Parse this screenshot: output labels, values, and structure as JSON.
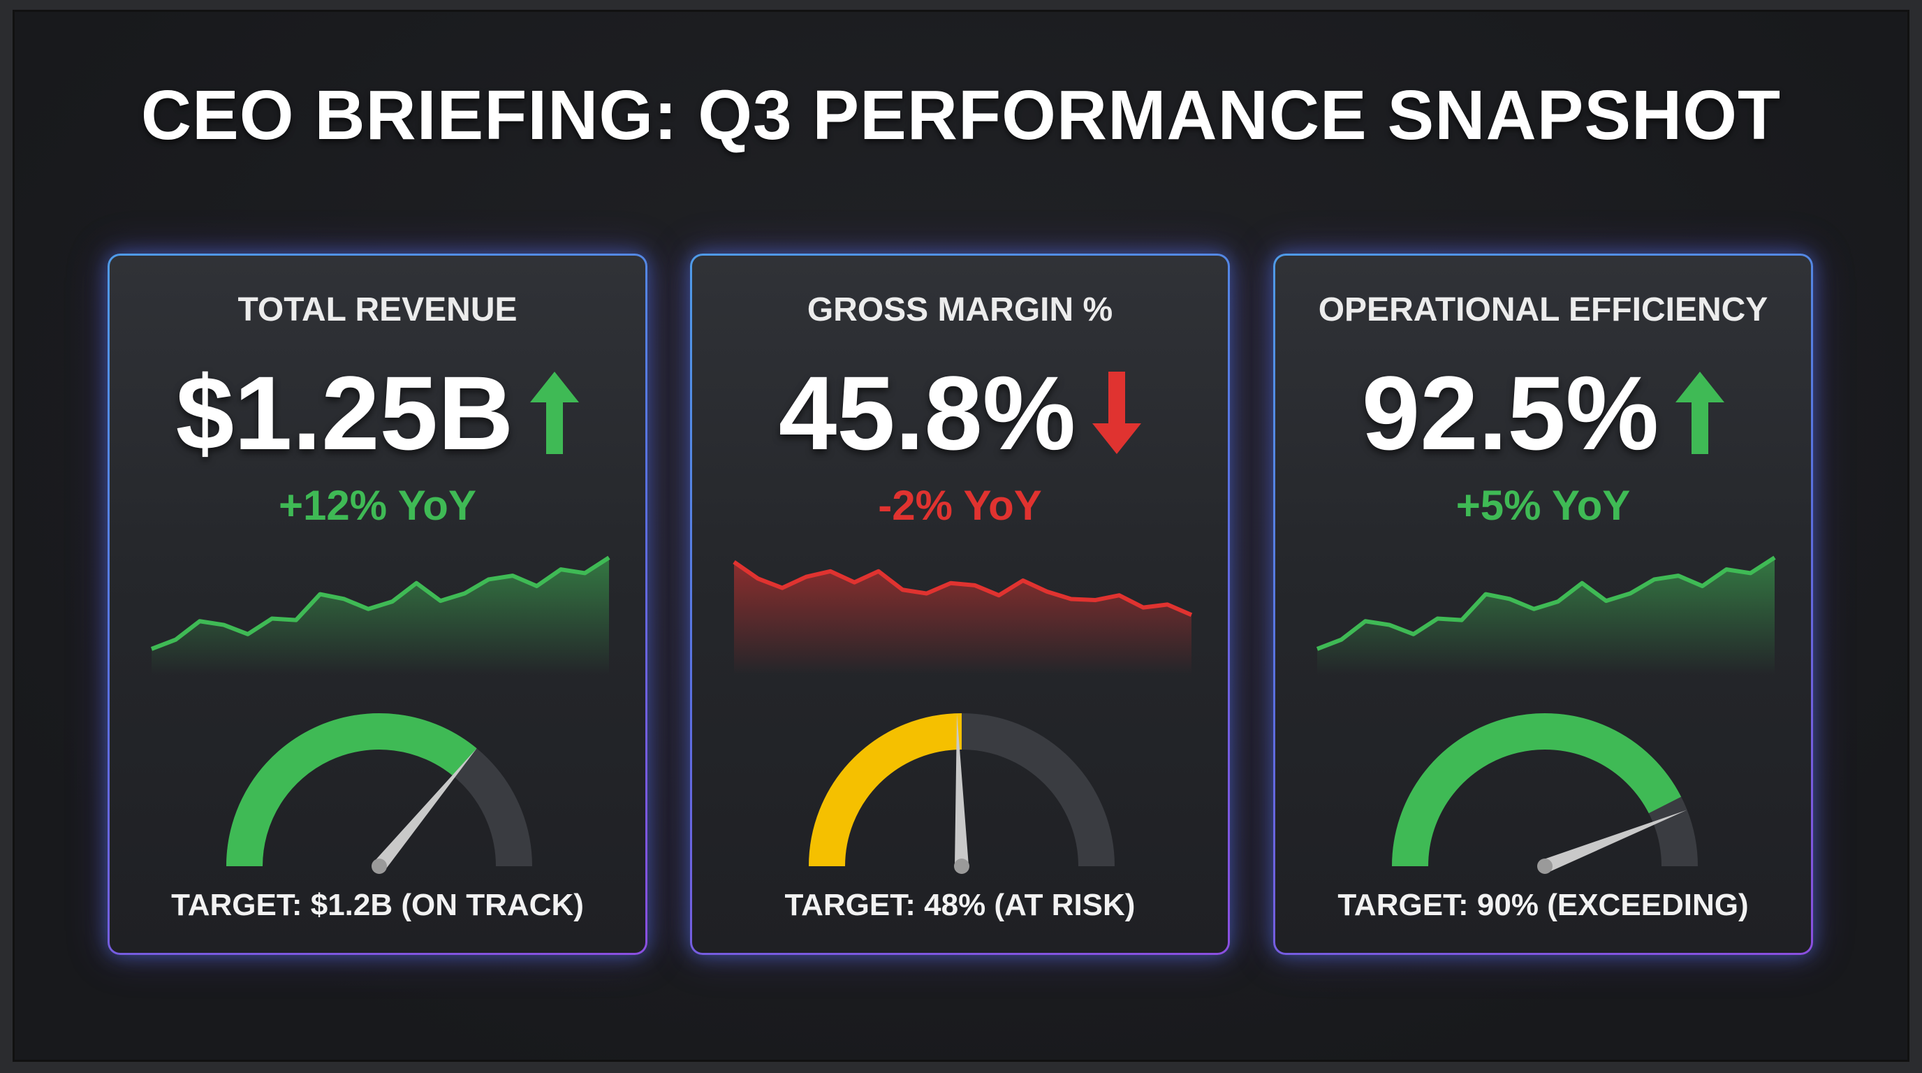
{
  "header": {
    "title": "CEO BRIEFING: Q3 PERFORMANCE SNAPSHOT"
  },
  "colors": {
    "positive": "#3fba55",
    "negative": "#e03330",
    "warning": "#f5c000",
    "track": "#3a3c41",
    "border_start": "#4f9be8",
    "border_end": "#8b4fe0"
  },
  "cards": [
    {
      "title": "TOTAL REVENUE",
      "value": "$1.25B",
      "trend": "up",
      "trend_icon": "arrow-up-icon",
      "yoy": "+12% YoY",
      "target": "TARGET: $1.2B (ON TRACK)",
      "status": "positive",
      "gauge_fill": 0.72,
      "needle": 0.72,
      "gauge_color": "#3fba55",
      "sparkline": [
        7,
        9.5,
        14.5,
        13.5,
        11,
        15.2,
        14.8,
        21.8,
        20.5,
        17.8,
        19.8,
        24.8,
        20,
        22,
        25.8,
        26.8,
        24,
        28.5,
        27.5,
        31.7
      ]
    },
    {
      "title": "GROSS MARGIN %",
      "value": "45.8%",
      "trend": "down",
      "trend_icon": "arrow-down-icon",
      "yoy": "-2% YoY",
      "target": "TARGET: 48% (AT RISK)",
      "status": "negative",
      "gauge_fill": 0.5,
      "needle": 0.49,
      "gauge_color": "#f5c000",
      "sparkline": [
        30.5,
        26,
        23.5,
        26.5,
        28,
        25,
        28,
        23,
        22,
        24.8,
        24.2,
        21.5,
        25.5,
        22.5,
        20.5,
        20.2,
        21.5,
        18.2,
        19,
        16.2
      ]
    },
    {
      "title": "OPERATIONAL EFFICIENCY",
      "value": "92.5%",
      "trend": "up",
      "trend_icon": "arrow-up-icon",
      "yoy": "+5% YoY",
      "target": "TARGET: 90% (EXCEEDING)",
      "status": "positive",
      "gauge_fill": 0.85,
      "needle": 0.88,
      "gauge_color": "#3fba55",
      "sparkline": [
        7,
        9.5,
        14.5,
        13.5,
        11,
        15.2,
        14.8,
        21.8,
        20.5,
        17.8,
        19.8,
        24.8,
        20,
        22,
        25.8,
        26.8,
        24,
        28.5,
        27.5,
        31.7
      ]
    }
  ]
}
